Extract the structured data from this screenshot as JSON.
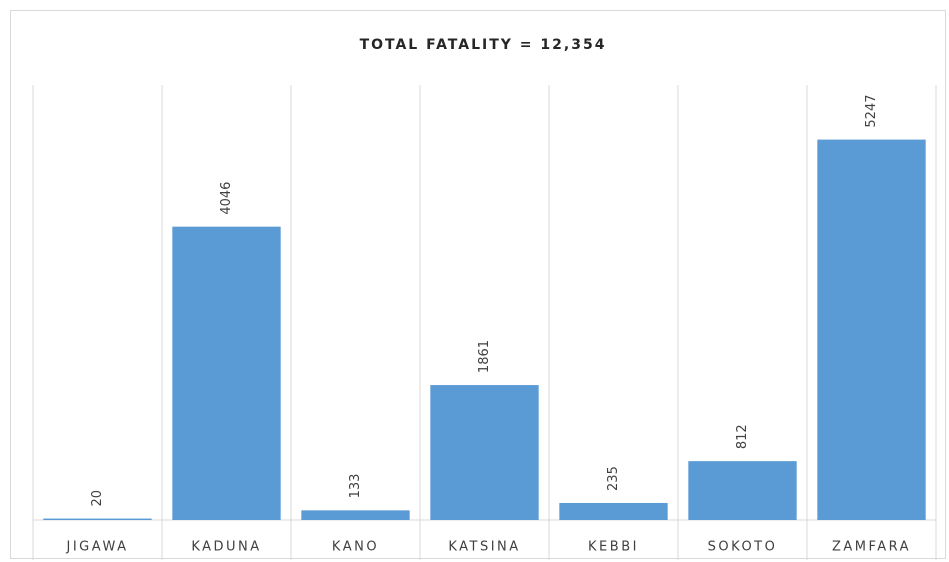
{
  "chart_data": {
    "type": "bar",
    "title": "TOTAL FATALITY = 12,354",
    "categories": [
      "JIGAWA",
      "KADUNA",
      "KANO",
      "KATSINA",
      "KEBBI",
      "SOKOTO",
      "ZAMFARA"
    ],
    "values": [
      20,
      4046,
      133,
      1861,
      235,
      812,
      5247
    ],
    "color": "#5b9bd5",
    "ylim": [
      0,
      6000
    ]
  }
}
